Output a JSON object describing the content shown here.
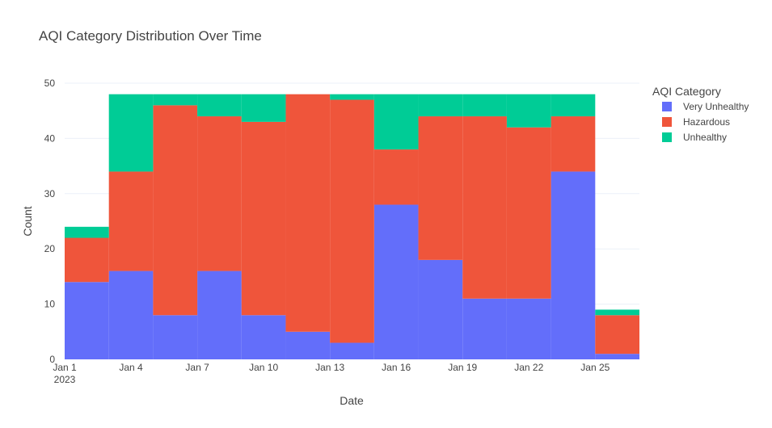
{
  "chart_data": {
    "type": "bar",
    "title": "AQI Category Distribution Over Time",
    "xlabel": "Date",
    "ylabel": "Count",
    "ylim": [
      0,
      50
    ],
    "yticks": [
      0,
      10,
      20,
      30,
      40,
      50
    ],
    "grid": true,
    "stacked": true,
    "bin_days": 2,
    "x_tick_labels": [
      "Jan 1",
      "Jan 4",
      "Jan 7",
      "Jan 10",
      "Jan 13",
      "Jan 16",
      "Jan 19",
      "Jan 22",
      "Jan 25"
    ],
    "x_tick_year": "2023",
    "bins": [
      "2023-01-01",
      "2023-01-03",
      "2023-01-05",
      "2023-01-07",
      "2023-01-09",
      "2023-01-11",
      "2023-01-13",
      "2023-01-15",
      "2023-01-17",
      "2023-01-19",
      "2023-01-21",
      "2023-01-23",
      "2023-01-25"
    ],
    "series": [
      {
        "name": "Very Unhealthy",
        "color": "#636efa",
        "values": [
          14,
          16,
          8,
          16,
          8,
          5,
          3,
          28,
          18,
          11,
          11,
          34,
          1
        ]
      },
      {
        "name": "Hazardous",
        "color": "#ef553b",
        "values": [
          8,
          18,
          38,
          28,
          35,
          43,
          44,
          10,
          26,
          33,
          31,
          10,
          7
        ]
      },
      {
        "name": "Unhealthy",
        "color": "#00cc96",
        "values": [
          2,
          14,
          2,
          4,
          5,
          0,
          1,
          10,
          4,
          4,
          6,
          4,
          1
        ]
      }
    ],
    "legend": {
      "title": "AQI Category",
      "position": "right"
    }
  }
}
